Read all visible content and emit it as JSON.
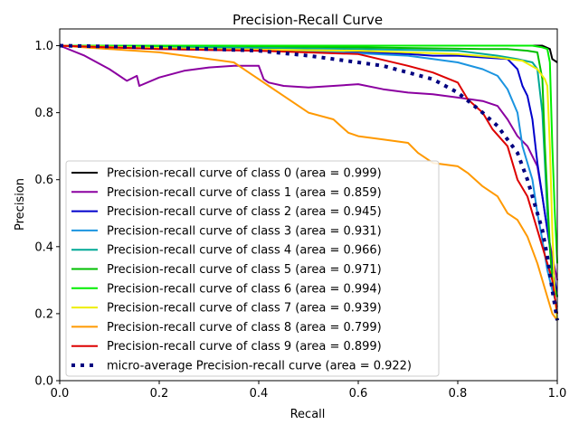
{
  "chart_data": {
    "type": "line",
    "title": "Precision-Recall Curve",
    "xlabel": "Recall",
    "ylabel": "Precision",
    "xlim": [
      0,
      1
    ],
    "ylim": [
      0,
      1.05
    ],
    "xticks": [
      0,
      0.2,
      0.4,
      0.6,
      0.8,
      1
    ],
    "xtick_labels": [
      "0.0",
      "0.2",
      "0.4",
      "0.6",
      "0.8",
      "1.0"
    ],
    "yticks": [
      0,
      0.2,
      0.4,
      0.6,
      0.8,
      1
    ],
    "ytick_labels": [
      "0.0",
      "0.2",
      "0.4",
      "0.6",
      "0.8",
      "1.0"
    ],
    "grid": false,
    "legend_position": "lower-left",
    "series": [
      {
        "name": "Precision-recall curve of class 0 (area = 0.999)",
        "color": "#000000",
        "dash": false,
        "x": [
          0,
          0.3,
          0.6,
          0.9,
          0.97,
          0.985,
          0.99,
          1.0
        ],
        "y": [
          1.0,
          1.0,
          1.0,
          1.0,
          1.0,
          0.99,
          0.96,
          0.95
        ]
      },
      {
        "name": "Precision-recall curve of class 1 (area = 0.859)",
        "color": "#8b00a0",
        "dash": false,
        "x": [
          0,
          0.05,
          0.1,
          0.135,
          0.155,
          0.16,
          0.2,
          0.25,
          0.3,
          0.35,
          0.4,
          0.41,
          0.42,
          0.45,
          0.5,
          0.55,
          0.6,
          0.65,
          0.7,
          0.75,
          0.8,
          0.85,
          0.88,
          0.9,
          0.92,
          0.94,
          0.96,
          0.97,
          0.98,
          0.99,
          1.0
        ],
        "y": [
          1.0,
          0.97,
          0.93,
          0.895,
          0.91,
          0.88,
          0.905,
          0.925,
          0.935,
          0.94,
          0.94,
          0.9,
          0.89,
          0.88,
          0.875,
          0.88,
          0.885,
          0.87,
          0.86,
          0.855,
          0.845,
          0.835,
          0.82,
          0.78,
          0.73,
          0.7,
          0.64,
          0.55,
          0.45,
          0.37,
          0.3
        ]
      },
      {
        "name": "Precision-recall curve of class 2 (area = 0.945)",
        "color": "#0000cc",
        "dash": false,
        "x": [
          0,
          0.2,
          0.4,
          0.6,
          0.7,
          0.75,
          0.8,
          0.85,
          0.9,
          0.92,
          0.93,
          0.94,
          0.95,
          0.96,
          0.97,
          0.98,
          0.99,
          1.0
        ],
        "y": [
          1.0,
          0.99,
          0.985,
          0.98,
          0.975,
          0.97,
          0.97,
          0.965,
          0.96,
          0.93,
          0.88,
          0.85,
          0.78,
          0.65,
          0.55,
          0.45,
          0.35,
          0.25
        ]
      },
      {
        "name": "Precision-recall curve of class 3 (area = 0.931)",
        "color": "#1b94e0",
        "dash": false,
        "x": [
          0,
          0.3,
          0.5,
          0.7,
          0.75,
          0.8,
          0.85,
          0.88,
          0.9,
          0.92,
          0.93,
          0.94,
          0.95,
          0.96,
          0.97,
          0.98,
          0.99,
          1.0
        ],
        "y": [
          1.0,
          0.99,
          0.985,
          0.97,
          0.96,
          0.95,
          0.93,
          0.91,
          0.87,
          0.8,
          0.7,
          0.65,
          0.6,
          0.5,
          0.42,
          0.33,
          0.27,
          0.22
        ]
      },
      {
        "name": "Precision-recall curve of class 4 (area = 0.966)",
        "color": "#00a896",
        "dash": false,
        "x": [
          0,
          0.3,
          0.6,
          0.8,
          0.88,
          0.92,
          0.95,
          0.96,
          0.97,
          0.975,
          0.98,
          0.985,
          0.99,
          1.0
        ],
        "y": [
          1.0,
          0.995,
          0.99,
          0.985,
          0.97,
          0.96,
          0.95,
          0.93,
          0.8,
          0.65,
          0.5,
          0.4,
          0.3,
          0.2
        ]
      },
      {
        "name": "Precision-recall curve of class 5 (area = 0.971)",
        "color": "#00bf00",
        "dash": false,
        "x": [
          0,
          0.3,
          0.6,
          0.85,
          0.9,
          0.94,
          0.96,
          0.97,
          0.975,
          0.98,
          0.985,
          0.99,
          1.0
        ],
        "y": [
          1.0,
          1.0,
          0.995,
          0.99,
          0.99,
          0.985,
          0.98,
          0.9,
          0.7,
          0.55,
          0.4,
          0.3,
          0.25
        ]
      },
      {
        "name": "Precision-recall curve of class 6 (area = 0.994)",
        "color": "#00ee00",
        "dash": false,
        "x": [
          0,
          0.3,
          0.6,
          0.8,
          0.9,
          0.95,
          0.97,
          0.98,
          0.985,
          0.99,
          0.995,
          1.0
        ],
        "y": [
          1.0,
          1.0,
          1.0,
          1.0,
          1.0,
          1.0,
          0.995,
          0.99,
          0.95,
          0.7,
          0.5,
          0.35
        ]
      },
      {
        "name": "Precision-recall curve of class 7 (area = 0.939)",
        "color": "#eeee00",
        "dash": false,
        "x": [
          0,
          0.3,
          0.6,
          0.8,
          0.88,
          0.93,
          0.96,
          0.975,
          0.98,
          0.985,
          0.99,
          0.995,
          1.0
        ],
        "y": [
          1.0,
          0.99,
          0.985,
          0.975,
          0.965,
          0.955,
          0.93,
          0.9,
          0.88,
          0.7,
          0.45,
          0.25,
          0.18
        ]
      },
      {
        "name": "Precision-recall curve of class 8 (area = 0.799)",
        "color": "#ff9900",
        "dash": false,
        "x": [
          0,
          0.1,
          0.2,
          0.3,
          0.35,
          0.38,
          0.4,
          0.42,
          0.45,
          0.5,
          0.55,
          0.58,
          0.6,
          0.65,
          0.7,
          0.72,
          0.75,
          0.8,
          0.82,
          0.85,
          0.88,
          0.9,
          0.92,
          0.94,
          0.96,
          0.98,
          0.99,
          1.0
        ],
        "y": [
          1.0,
          0.99,
          0.98,
          0.96,
          0.95,
          0.92,
          0.9,
          0.88,
          0.85,
          0.8,
          0.78,
          0.74,
          0.73,
          0.72,
          0.71,
          0.68,
          0.65,
          0.64,
          0.62,
          0.58,
          0.55,
          0.5,
          0.48,
          0.43,
          0.35,
          0.25,
          0.2,
          0.18
        ]
      },
      {
        "name": "Precision-recall curve of class 9 (area = 0.899)",
        "color": "#dd0000",
        "dash": false,
        "x": [
          0,
          0.2,
          0.4,
          0.6,
          0.7,
          0.75,
          0.8,
          0.82,
          0.85,
          0.87,
          0.9,
          0.92,
          0.94,
          0.95,
          0.96,
          0.97,
          0.98,
          0.99,
          1.0
        ],
        "y": [
          1.0,
          0.99,
          0.985,
          0.975,
          0.94,
          0.92,
          0.89,
          0.84,
          0.8,
          0.75,
          0.7,
          0.6,
          0.55,
          0.5,
          0.45,
          0.4,
          0.35,
          0.3,
          0.2
        ]
      },
      {
        "name": "micro-average Precision-recall curve (area = 0.922)",
        "color": "#000080",
        "dash": true,
        "x": [
          0,
          0.2,
          0.4,
          0.5,
          0.6,
          0.65,
          0.7,
          0.75,
          0.8,
          0.85,
          0.88,
          0.9,
          0.92,
          0.94,
          0.96,
          0.97,
          0.98,
          0.99,
          1.0
        ],
        "y": [
          1.0,
          0.995,
          0.985,
          0.97,
          0.95,
          0.94,
          0.92,
          0.9,
          0.86,
          0.8,
          0.76,
          0.72,
          0.68,
          0.6,
          0.5,
          0.45,
          0.37,
          0.27,
          0.18
        ]
      }
    ]
  }
}
